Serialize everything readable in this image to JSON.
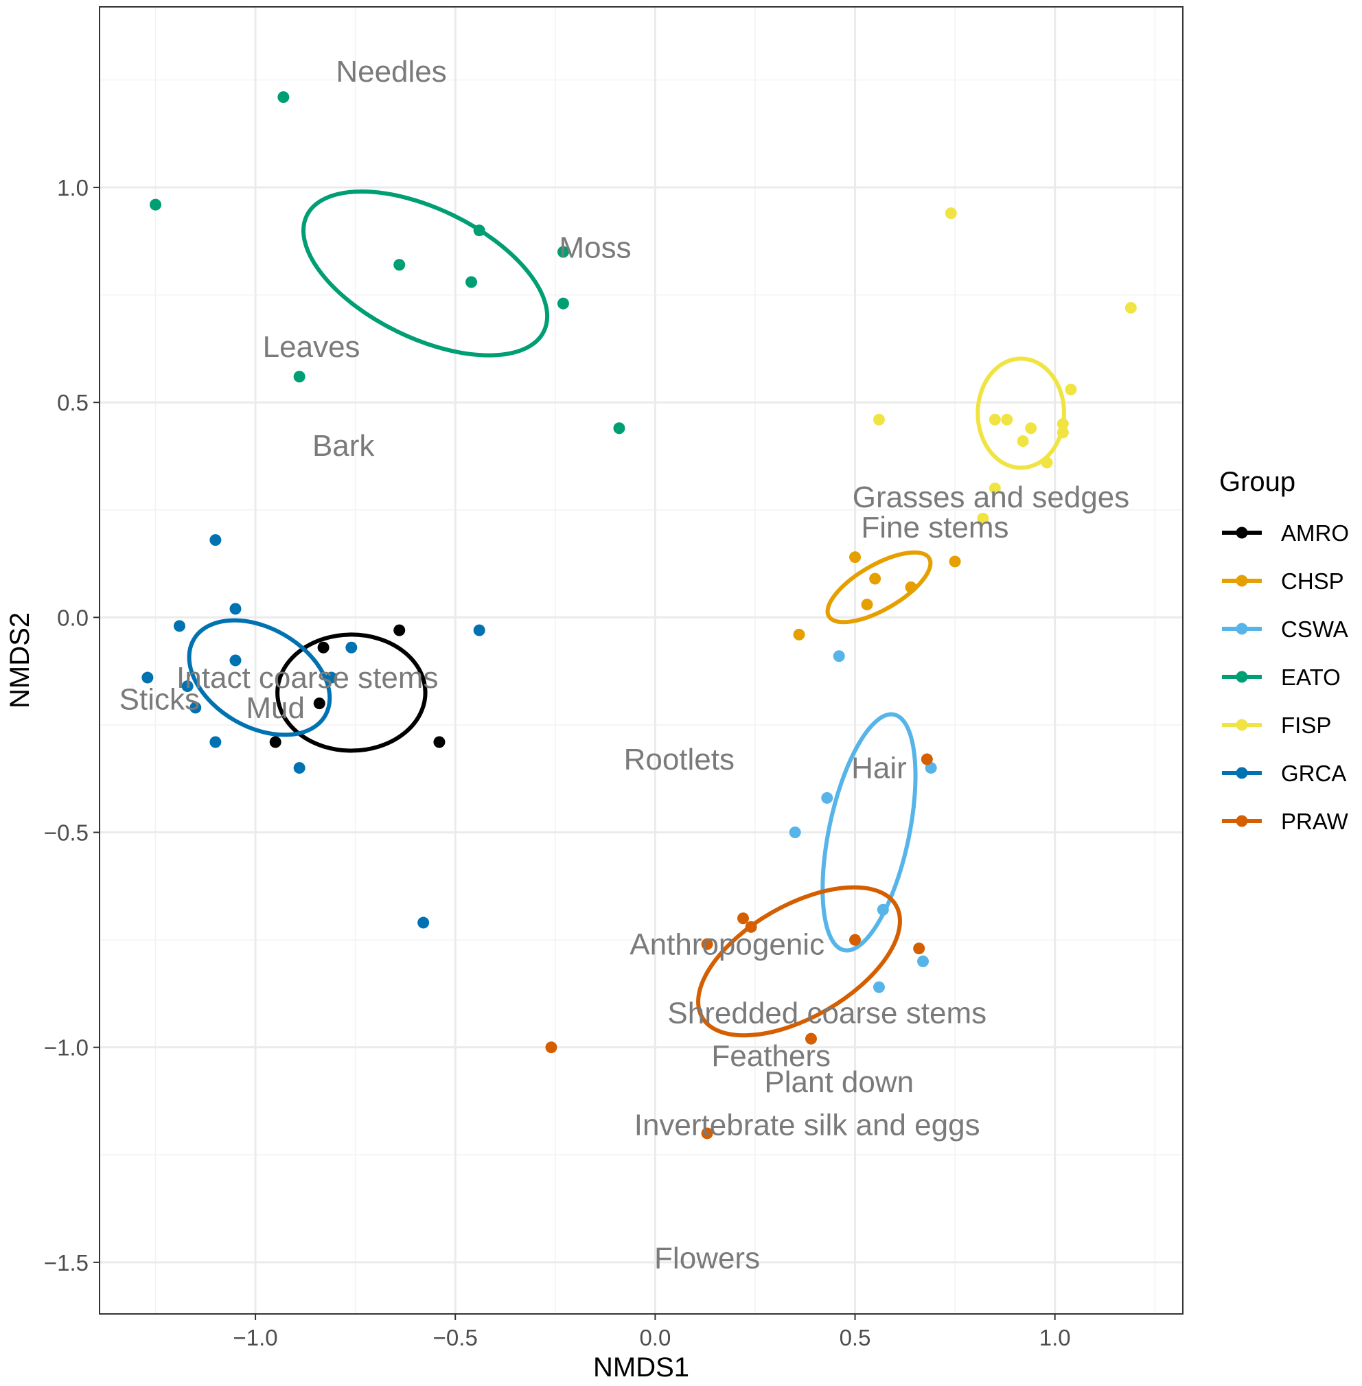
{
  "chart_data": {
    "type": "scatter",
    "xlabel": "NMDS1",
    "ylabel": "NMDS2",
    "xlim": [
      -1.39,
      1.32
    ],
    "ylim": [
      -1.62,
      1.42
    ],
    "xticks": [
      -1.0,
      -0.5,
      0.0,
      0.5,
      1.0
    ],
    "xtick_labels": [
      "−1.0",
      "−0.5",
      "0.0",
      "0.5",
      "1.0"
    ],
    "yticks": [
      -1.5,
      -1.0,
      -0.5,
      0.0,
      0.5,
      1.0
    ],
    "ytick_labels": [
      "−1.5",
      "−1.0",
      "−0.5",
      "0.0",
      "0.5",
      "1.0"
    ],
    "grid": true,
    "legend": {
      "title": "Group",
      "position": "right"
    },
    "series": [
      {
        "name": "AMRO",
        "color": "#000000",
        "points": [
          [
            -0.64,
            -0.03
          ],
          [
            -0.83,
            -0.07
          ],
          [
            -0.84,
            -0.2
          ],
          [
            -0.95,
            -0.29
          ],
          [
            -0.54,
            -0.29
          ]
        ],
        "ellipse": {
          "cx": -0.76,
          "cy": -0.175,
          "rx": 0.185,
          "ry": 0.135,
          "angle_deg": 0
        }
      },
      {
        "name": "CHSP",
        "color": "#E69F00",
        "points": [
          [
            0.5,
            0.14
          ],
          [
            0.55,
            0.09
          ],
          [
            0.64,
            0.07
          ],
          [
            0.53,
            0.03
          ],
          [
            0.36,
            -0.04
          ],
          [
            0.75,
            0.13
          ]
        ],
        "ellipse": {
          "cx": 0.56,
          "cy": 0.07,
          "rx": 0.145,
          "ry": 0.052,
          "angle_deg": 30
        }
      },
      {
        "name": "CSWA",
        "color": "#56B4E9",
        "points": [
          [
            0.46,
            -0.09
          ],
          [
            0.69,
            -0.35
          ],
          [
            0.43,
            -0.42
          ],
          [
            0.35,
            -0.5
          ],
          [
            0.57,
            -0.68
          ],
          [
            0.67,
            -0.8
          ],
          [
            0.56,
            -0.86
          ]
        ],
        "ellipse": {
          "cx": 0.535,
          "cy": -0.5,
          "rx": 0.1,
          "ry": 0.28,
          "angle_deg": -12
        }
      },
      {
        "name": "EATO",
        "color": "#009E73",
        "points": [
          [
            -0.93,
            1.21
          ],
          [
            -1.25,
            0.96
          ],
          [
            -0.44,
            0.9
          ],
          [
            -0.23,
            0.85
          ],
          [
            -0.64,
            0.82
          ],
          [
            -0.46,
            0.78
          ],
          [
            -0.23,
            0.73
          ],
          [
            -0.89,
            0.56
          ],
          [
            -0.09,
            0.44
          ]
        ],
        "ellipse": {
          "cx": -0.575,
          "cy": 0.8,
          "rx": 0.33,
          "ry": 0.15,
          "angle_deg": -26
        }
      },
      {
        "name": "FISP",
        "color": "#F0E442",
        "points": [
          [
            0.74,
            0.94
          ],
          [
            1.19,
            0.72
          ],
          [
            1.04,
            0.53
          ],
          [
            0.56,
            0.46
          ],
          [
            0.85,
            0.46
          ],
          [
            0.88,
            0.46
          ],
          [
            0.94,
            0.44
          ],
          [
            1.02,
            0.45
          ],
          [
            1.02,
            0.43
          ],
          [
            0.92,
            0.41
          ],
          [
            0.98,
            0.36
          ],
          [
            0.85,
            0.3
          ],
          [
            0.82,
            0.23
          ]
        ],
        "ellipse": {
          "cx": 0.915,
          "cy": 0.475,
          "rx": 0.108,
          "ry": 0.127,
          "angle_deg": 0
        }
      },
      {
        "name": "GRCA",
        "color": "#0072B2",
        "points": [
          [
            -1.1,
            0.18
          ],
          [
            -1.05,
            0.02
          ],
          [
            -1.19,
            -0.02
          ],
          [
            -0.76,
            -0.07
          ],
          [
            -0.44,
            -0.03
          ],
          [
            -1.05,
            -0.1
          ],
          [
            -1.27,
            -0.14
          ],
          [
            -0.81,
            -0.14
          ],
          [
            -1.17,
            -0.16
          ],
          [
            -1.15,
            -0.21
          ],
          [
            -1.1,
            -0.29
          ],
          [
            -0.89,
            -0.35
          ],
          [
            -0.58,
            -0.71
          ]
        ],
        "ellipse": {
          "cx": -0.99,
          "cy": -0.14,
          "rx": 0.19,
          "ry": 0.115,
          "angle_deg": -30
        }
      },
      {
        "name": "PRAW",
        "color": "#D55E00",
        "points": [
          [
            0.68,
            -0.33
          ],
          [
            0.22,
            -0.7
          ],
          [
            0.24,
            -0.72
          ],
          [
            0.5,
            -0.75
          ],
          [
            0.13,
            -0.76
          ],
          [
            0.66,
            -0.77
          ],
          [
            0.39,
            -0.98
          ],
          [
            -0.26,
            -1.0
          ],
          [
            0.13,
            -1.2
          ]
        ],
        "ellipse": {
          "cx": 0.36,
          "cy": -0.8,
          "rx": 0.28,
          "ry": 0.13,
          "angle_deg": 30
        }
      }
    ],
    "annotations": [
      {
        "text": "Needles",
        "x": -0.66,
        "y": 1.27
      },
      {
        "text": "Moss",
        "x": -0.15,
        "y": 0.86
      },
      {
        "text": "Leaves",
        "x": -0.86,
        "y": 0.63
      },
      {
        "text": "Bark",
        "x": -0.78,
        "y": 0.4
      },
      {
        "text": "Grasses and sedges",
        "x": 0.84,
        "y": 0.28
      },
      {
        "text": "Fine stems",
        "x": 0.7,
        "y": 0.21
      },
      {
        "text": "Intact coarse stems",
        "x": -0.87,
        "y": -0.14
      },
      {
        "text": "Sticks",
        "x": -1.24,
        "y": -0.19
      },
      {
        "text": "Mud",
        "x": -0.95,
        "y": -0.21
      },
      {
        "text": "Rootlets",
        "x": 0.06,
        "y": -0.33
      },
      {
        "text": "Hair",
        "x": 0.56,
        "y": -0.35
      },
      {
        "text": "Anthropogenic",
        "x": 0.18,
        "y": -0.76
      },
      {
        "text": "Shredded coarse stems",
        "x": 0.43,
        "y": -0.92
      },
      {
        "text": "Feathers",
        "x": 0.29,
        "y": -1.02
      },
      {
        "text": "Plant down",
        "x": 0.46,
        "y": -1.08
      },
      {
        "text": "Invertebrate silk and eggs",
        "x": 0.38,
        "y": -1.18
      },
      {
        "text": "Flowers",
        "x": 0.13,
        "y": -1.49
      }
    ]
  }
}
